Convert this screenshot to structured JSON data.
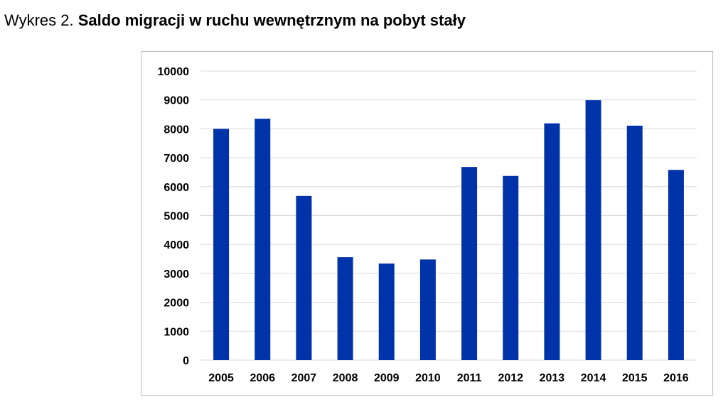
{
  "title": {
    "lead": "Wykres 2.",
    "main": "Saldo migracji w ruchu wewnętrznym na pobyt stały"
  },
  "chart_data": {
    "type": "bar",
    "title": "Wykres 2. Saldo migracji w ruchu wewnętrznym na pobyt stały",
    "categories": [
      "2005",
      "2006",
      "2007",
      "2008",
      "2009",
      "2010",
      "2011",
      "2012",
      "2013",
      "2014",
      "2015",
      "2016"
    ],
    "values": [
      8000,
      8350,
      5680,
      3560,
      3340,
      3480,
      6680,
      6370,
      8190,
      8990,
      8110,
      6580
    ],
    "ylim": [
      0,
      10000
    ],
    "yticks": [
      0,
      1000,
      2000,
      3000,
      4000,
      5000,
      6000,
      7000,
      8000,
      9000,
      10000
    ],
    "xlabel": "",
    "ylabel": "",
    "grid": true,
    "legend": "none",
    "bar_color": "#0033aa",
    "grid_color": "#d9d9d9"
  }
}
